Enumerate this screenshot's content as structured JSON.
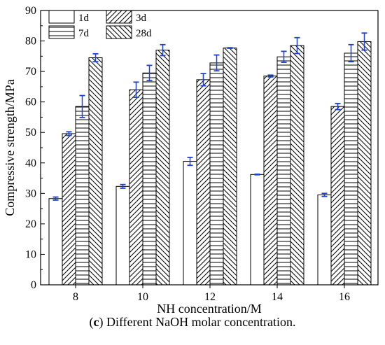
{
  "caption": {
    "panel": "c",
    "text": "Different NaOH molar concentration."
  },
  "chart_data": {
    "type": "bar",
    "categories": [
      "8",
      "10",
      "12",
      "14",
      "16"
    ],
    "series": [
      {
        "name": "1d",
        "values": [
          28.3,
          32.3,
          40.5,
          36.2,
          29.5
        ],
        "errors": [
          0.5,
          0.6,
          1.3,
          0.1,
          0.5
        ]
      },
      {
        "name": "3d",
        "values": [
          49.6,
          64.0,
          67.3,
          68.5,
          58.5
        ],
        "errors": [
          0.6,
          2.5,
          2.0,
          0.3,
          1.0
        ]
      },
      {
        "name": "7d",
        "values": [
          58.5,
          69.5,
          72.8,
          74.8,
          76.0
        ],
        "errors": [
          3.6,
          2.5,
          2.6,
          1.8,
          2.8
        ]
      },
      {
        "name": "28d",
        "values": [
          74.5,
          77.0,
          77.7,
          78.5,
          79.8
        ],
        "errors": [
          1.3,
          1.8,
          0.1,
          2.6,
          2.8
        ]
      }
    ],
    "patterns": [
      "none",
      "diagonal-up",
      "horizontal",
      "diagonal-down"
    ],
    "xlabel": "NH concentration/M",
    "ylabel": "Compressive strength/MPa",
    "ylim": [
      0,
      90
    ],
    "yticks": [
      0,
      10,
      20,
      30,
      40,
      50,
      60,
      70,
      80,
      90
    ],
    "legend_position": "top-left",
    "grid": false,
    "colors": {
      "bars": "#000000",
      "error_bars": "#1f3fd1",
      "background": "#ffffff"
    }
  }
}
